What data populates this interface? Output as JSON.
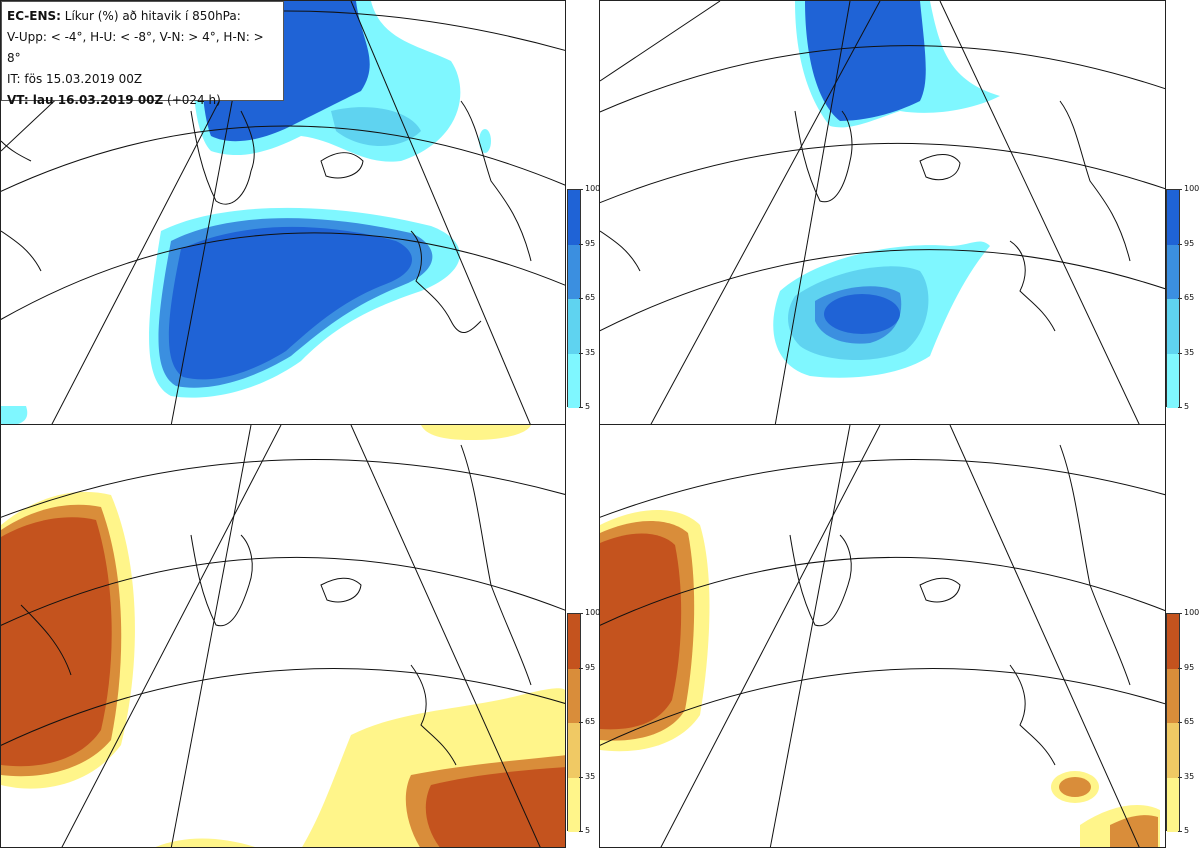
{
  "legend": {
    "line1_bold": "EC-ENS:",
    "line1_rest": "Líkur (%) að hitavik í 850hPa:",
    "line2": "V-Upp: < -4°, H-U: < -8°, V-N: > 4°, H-N: > 8°",
    "line3": "IT: fös 15.03.2019 00Z",
    "line4_bold": "VT: lau 16.03.2019 00Z",
    "line4_rest": "(+024 h)"
  },
  "colorbar_ticks": [
    "100",
    "95",
    "65",
    "35",
    "5"
  ],
  "colors": {
    "cold": [
      "#7ff7ff",
      "#5fd3f0",
      "#3b8fe0",
      "#1f63d6"
    ],
    "warm": [
      "#fff58a",
      "#f0c964",
      "#d98d3a",
      "#c4531e"
    ],
    "coast": "#111111",
    "grid": "#111111"
  },
  "panels": [
    {
      "name": "panel-vupp",
      "scheme": "cold"
    },
    {
      "name": "panel-hu",
      "scheme": "cold"
    },
    {
      "name": "panel-vn",
      "scheme": "warm"
    },
    {
      "name": "panel-hn",
      "scheme": "warm"
    }
  ]
}
